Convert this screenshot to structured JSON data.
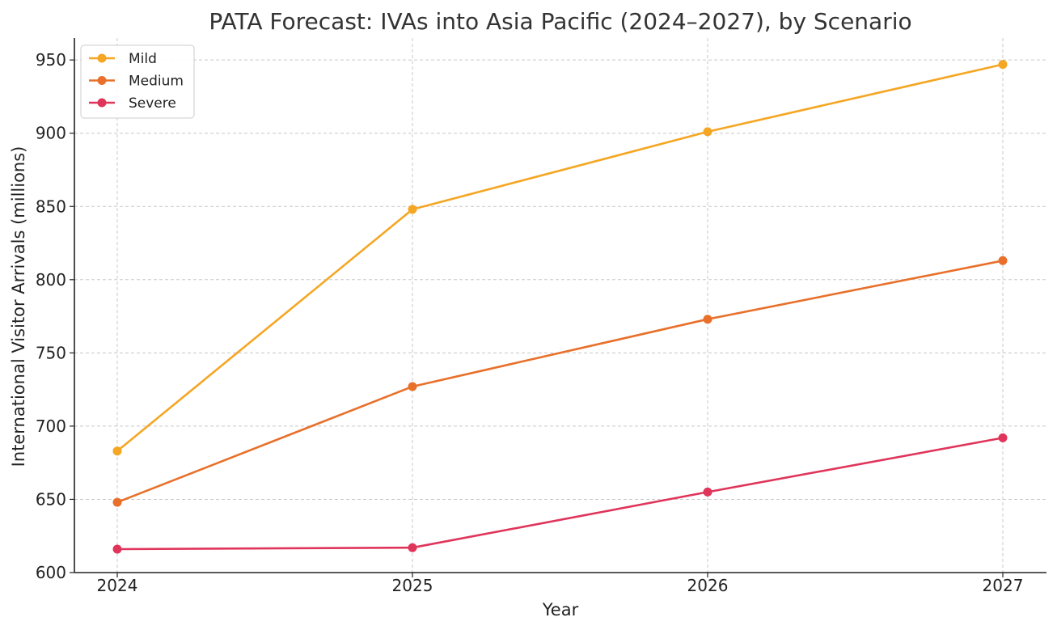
{
  "chart_data": {
    "type": "line",
    "title": "PATA Forecast: IVAs into Asia Pacific (2024–2027), by Scenario",
    "xlabel": "Year",
    "ylabel": "International Visitor Arrivals (millions)",
    "categories": [
      "2024",
      "2025",
      "2026",
      "2027"
    ],
    "ylim": [
      600,
      965
    ],
    "yticks": [
      600,
      650,
      700,
      750,
      800,
      850,
      900,
      950
    ],
    "grid": true,
    "legend_position": "top-left",
    "series": [
      {
        "name": "Mild",
        "color": "#F5A623",
        "values": [
          683,
          848,
          901,
          947
        ]
      },
      {
        "name": "Medium",
        "color": "#E8702A",
        "values": [
          648,
          727,
          773,
          813
        ]
      },
      {
        "name": "Severe",
        "color": "#E0355A",
        "values": [
          616,
          617,
          655,
          692
        ]
      }
    ]
  }
}
